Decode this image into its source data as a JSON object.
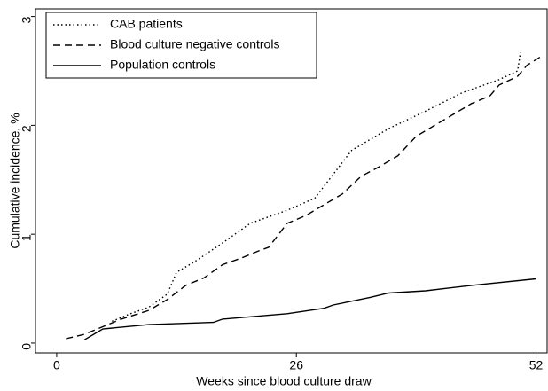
{
  "chart_data": {
    "type": "line",
    "xlabel": "Weeks since blood culture draw",
    "ylabel": "Cumulative incidence, %",
    "xlim": [
      -2.3,
      53.2
    ],
    "ylim": [
      -0.09,
      3.07
    ],
    "xticks": [
      0,
      26,
      52
    ],
    "yticks": [
      0,
      1,
      2,
      3
    ],
    "legend": "upper left",
    "series": [
      {
        "name": "CAB patients",
        "color": "#000000",
        "dash": "dotted",
        "x": [
          6,
          8,
          10,
          12,
          13,
          15,
          18,
          21,
          25,
          28,
          30,
          32,
          36,
          40,
          44,
          48,
          50,
          50.3
        ],
        "values": [
          0.2,
          0.27,
          0.33,
          0.45,
          0.65,
          0.75,
          0.92,
          1.1,
          1.22,
          1.33,
          1.55,
          1.77,
          1.97,
          2.13,
          2.3,
          2.42,
          2.5,
          2.67
        ]
      },
      {
        "name": "Blood culture negative controls",
        "color": "#000000",
        "dash": "dashed",
        "x": [
          1,
          3,
          5,
          7,
          10,
          12,
          14,
          16,
          18,
          20,
          22,
          23,
          25,
          27,
          29,
          31,
          33,
          35,
          37,
          39,
          41,
          43,
          45,
          47,
          48,
          50,
          51,
          52.5
        ],
        "values": [
          0.04,
          0.08,
          0.15,
          0.22,
          0.3,
          0.4,
          0.53,
          0.6,
          0.72,
          0.78,
          0.85,
          0.88,
          1.1,
          1.17,
          1.27,
          1.37,
          1.53,
          1.62,
          1.72,
          1.9,
          2.0,
          2.1,
          2.2,
          2.27,
          2.37,
          2.45,
          2.55,
          2.63
        ]
      },
      {
        "name": "Population controls",
        "color": "#000000",
        "dash": "solid",
        "x": [
          3,
          5,
          10,
          17,
          18,
          25,
          29,
          30,
          34,
          36,
          40,
          45,
          52
        ],
        "values": [
          0.03,
          0.13,
          0.17,
          0.19,
          0.22,
          0.27,
          0.32,
          0.35,
          0.42,
          0.46,
          0.48,
          0.53,
          0.59
        ]
      }
    ]
  }
}
